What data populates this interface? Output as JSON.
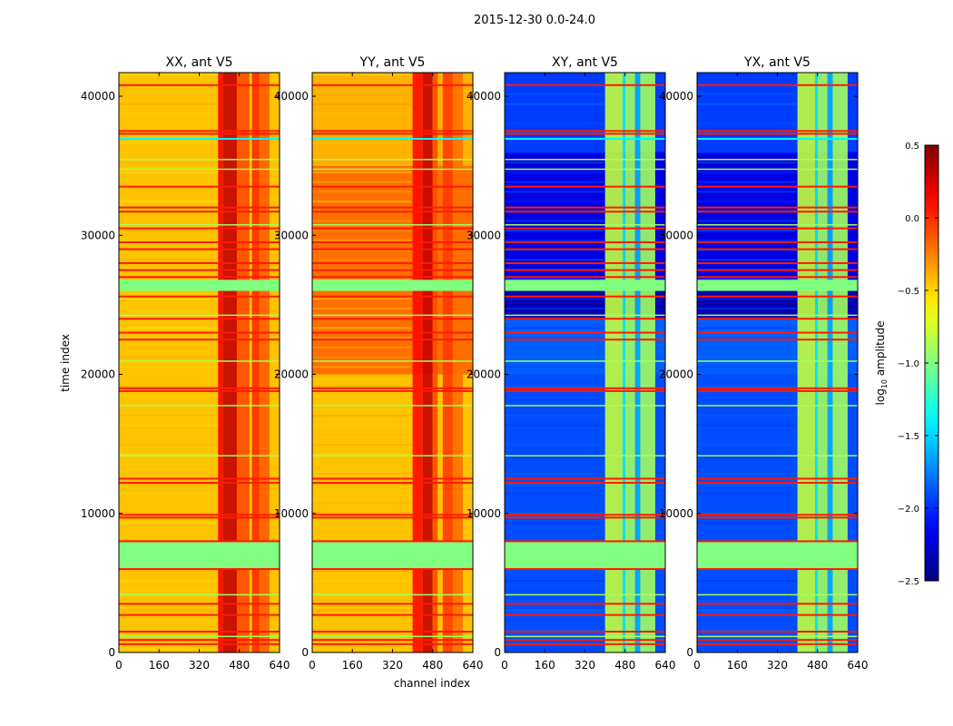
{
  "chart_data": {
    "type": "heatmap",
    "title": "2015-12-30 0.0-24.0",
    "xlabel": "channel index",
    "ylabel": "time index",
    "xlim": [
      0,
      640
    ],
    "ylim": [
      0,
      41700
    ],
    "xticks": [
      "0",
      "160",
      "320",
      "480",
      "640"
    ],
    "xtick_values": [
      0,
      160,
      320,
      480,
      640
    ],
    "yticks": [
      "0",
      "10000",
      "20000",
      "30000",
      "40000"
    ],
    "ytick_values": [
      0,
      10000,
      20000,
      30000,
      40000
    ],
    "colorbar": {
      "label": "log10 amplitude",
      "label_main": "log",
      "label_sub": "10",
      "label_rest": " amplitude",
      "colormap": "jet",
      "range": [
        -2.5,
        0.5
      ],
      "ticks": [
        "0.5",
        "0.0",
        "−0.5",
        "−1.0",
        "−1.5",
        "−2.0",
        "−2.5"
      ],
      "tick_values": [
        0.5,
        0.0,
        -0.5,
        -1.0,
        -1.5,
        -2.0,
        -2.5
      ]
    },
    "flagged_blocks": [
      [
        6000,
        8000,
        -1.0
      ],
      [
        26000,
        26800,
        -1.0
      ]
    ],
    "red_rows": [
      600,
      900,
      1500,
      2700,
      3500,
      6000,
      8000,
      9700,
      9900,
      12200,
      12500,
      18800,
      19000,
      22500,
      23000,
      24000,
      25600,
      27000,
      27500,
      28000,
      29000,
      29500,
      30500,
      31700,
      32000,
      33500,
      37300,
      37500,
      40800
    ],
    "green_rows": [
      1200,
      4200,
      14200,
      17800,
      21000,
      24300,
      30800,
      34800,
      35500
    ],
    "cyan_rows": [
      37000
    ],
    "panels": [
      {
        "title": "XX, ant V5",
        "base": -0.45,
        "segments": [
          [
            0,
            20000,
            -0.45
          ],
          [
            20000,
            41700,
            -0.45
          ]
        ],
        "bands": [
          [
            395,
            415,
            0.15
          ],
          [
            415,
            470,
            0.3
          ],
          [
            470,
            520,
            -0.1
          ],
          [
            530,
            560,
            0.0
          ],
          [
            560,
            600,
            -0.15
          ]
        ]
      },
      {
        "title": "YY, ant V5",
        "base": -0.4,
        "segments": [
          [
            0,
            20000,
            -0.45
          ],
          [
            20000,
            26000,
            -0.2
          ],
          [
            26800,
            35000,
            -0.2
          ],
          [
            35000,
            41700,
            -0.4
          ]
        ],
        "bands": [
          [
            400,
            440,
            0.1
          ],
          [
            440,
            480,
            0.3
          ],
          [
            480,
            500,
            -0.1
          ],
          [
            520,
            560,
            -0.05
          ],
          [
            560,
            600,
            -0.2
          ]
        ]
      },
      {
        "title": "XY, ant V5",
        "base": -1.9,
        "segments": [
          [
            0,
            6000,
            -1.9
          ],
          [
            8000,
            20000,
            -1.9
          ],
          [
            20000,
            24000,
            -1.85
          ],
          [
            24000,
            26000,
            -2.35
          ],
          [
            26800,
            36000,
            -2.2
          ],
          [
            36000,
            41700,
            -1.95
          ]
        ],
        "bands": [
          [
            400,
            470,
            -0.8
          ],
          [
            470,
            480,
            -1.4
          ],
          [
            480,
            520,
            -0.9
          ],
          [
            520,
            540,
            -1.6
          ],
          [
            540,
            600,
            -0.9
          ]
        ]
      },
      {
        "title": "YX, ant V5",
        "base": -1.9,
        "segments": [
          [
            0,
            6000,
            -1.9
          ],
          [
            8000,
            20000,
            -1.9
          ],
          [
            20000,
            24000,
            -1.85
          ],
          [
            24000,
            26000,
            -2.35
          ],
          [
            26800,
            36000,
            -2.2
          ],
          [
            36000,
            41700,
            -1.95
          ]
        ],
        "bands": [
          [
            400,
            470,
            -0.8
          ],
          [
            470,
            480,
            -1.4
          ],
          [
            480,
            520,
            -0.9
          ],
          [
            520,
            540,
            -1.6
          ],
          [
            540,
            600,
            -0.9
          ]
        ]
      }
    ]
  }
}
